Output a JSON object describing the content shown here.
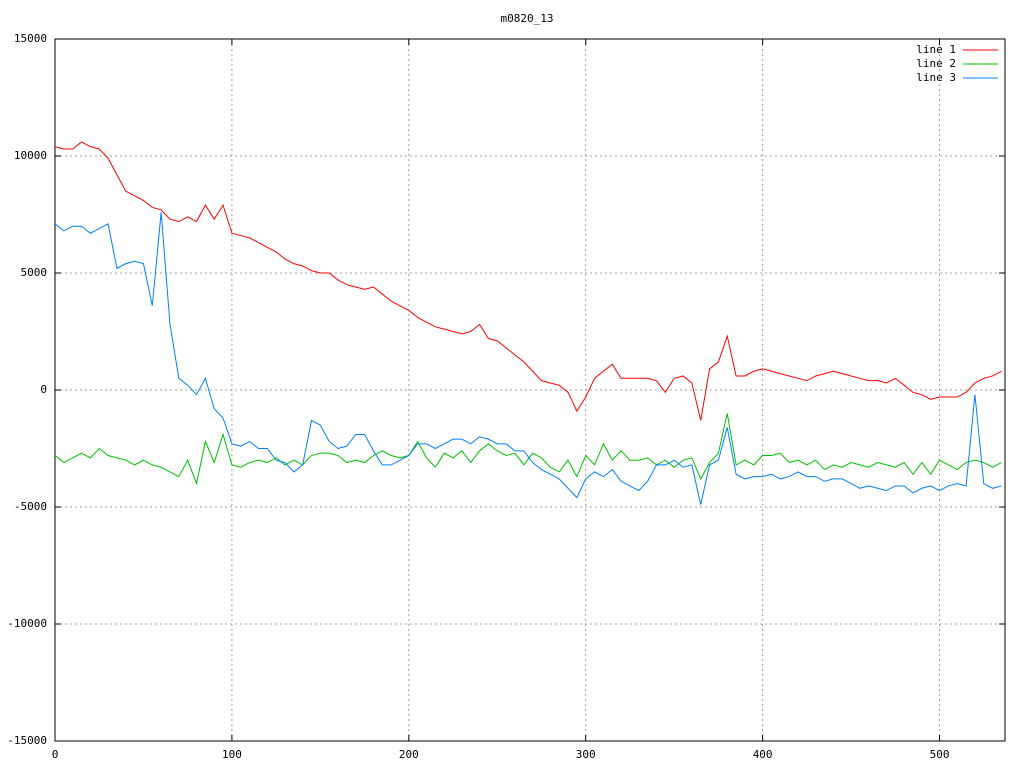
{
  "chart_data": {
    "type": "line",
    "title": "m0820_13",
    "x": [
      0,
      5,
      10,
      15,
      20,
      25,
      30,
      35,
      40,
      45,
      50,
      55,
      60,
      65,
      70,
      75,
      80,
      85,
      90,
      95,
      100,
      105,
      110,
      115,
      120,
      125,
      130,
      135,
      140,
      145,
      150,
      155,
      160,
      165,
      170,
      175,
      180,
      185,
      190,
      195,
      200,
      205,
      210,
      215,
      220,
      225,
      230,
      235,
      240,
      245,
      250,
      255,
      260,
      265,
      270,
      275,
      280,
      285,
      290,
      295,
      300,
      305,
      310,
      315,
      320,
      325,
      330,
      335,
      340,
      345,
      350,
      355,
      360,
      365,
      370,
      375,
      380,
      385,
      390,
      395,
      400,
      405,
      410,
      415,
      420,
      425,
      430,
      435,
      440,
      445,
      450,
      455,
      460,
      465,
      470,
      475,
      480,
      485,
      490,
      495,
      500,
      505,
      510,
      515,
      520,
      525,
      530,
      535
    ],
    "series": [
      {
        "name": "line 1",
        "color": "#ff0000",
        "values": [
          10400,
          10300,
          10300,
          10600,
          10400,
          10300,
          9900,
          9200,
          8500,
          8300,
          8100,
          7800,
          7700,
          7300,
          7200,
          7400,
          7200,
          7900,
          7300,
          7900,
          6700,
          6600,
          6500,
          6300,
          6100,
          5900,
          5600,
          5400,
          5300,
          5100,
          5000,
          5000,
          4700,
          4500,
          4400,
          4300,
          4400,
          4100,
          3800,
          3600,
          3400,
          3100,
          2900,
          2700,
          2600,
          2500,
          2400,
          2500,
          2800,
          2200,
          2100,
          1800,
          1500,
          1200,
          800,
          400,
          300,
          200,
          -100,
          -900,
          -300,
          500,
          800,
          1100,
          500,
          500,
          500,
          500,
          400,
          -100,
          500,
          600,
          300,
          -1300,
          900,
          1200,
          2300,
          600,
          600,
          800,
          900,
          800,
          700,
          600,
          500,
          400,
          600,
          700,
          800,
          700,
          600,
          500,
          400,
          400,
          300,
          500,
          200,
          -100,
          -200,
          -400,
          -300,
          -300,
          -300,
          -100,
          300,
          500,
          600,
          800
        ]
      },
      {
        "name": "line 2",
        "color": "#00c000",
        "values": [
          -2800,
          -3100,
          -2900,
          -2700,
          -2900,
          -2500,
          -2800,
          -2900,
          -3000,
          -3200,
          -3000,
          -3200,
          -3300,
          -3500,
          -3700,
          -3000,
          -4000,
          -2200,
          -3100,
          -1900,
          -3200,
          -3300,
          -3100,
          -3000,
          -3100,
          -2900,
          -3200,
          -3000,
          -3200,
          -2800,
          -2700,
          -2700,
          -2800,
          -3100,
          -3000,
          -3100,
          -2800,
          -2600,
          -2800,
          -2900,
          -2800,
          -2200,
          -2900,
          -3300,
          -2700,
          -2900,
          -2600,
          -3100,
          -2600,
          -2300,
          -2600,
          -2800,
          -2700,
          -3200,
          -2700,
          -2900,
          -3300,
          -3500,
          -3000,
          -3700,
          -2800,
          -3200,
          -2300,
          -3000,
          -2600,
          -3000,
          -3000,
          -2900,
          -3200,
          -3000,
          -3300,
          -3000,
          -2900,
          -3800,
          -3100,
          -2700,
          -1000,
          -3200,
          -3000,
          -3200,
          -2800,
          -2800,
          -2700,
          -3100,
          -3000,
          -3200,
          -3000,
          -3400,
          -3200,
          -3300,
          -3100,
          -3200,
          -3300,
          -3100,
          -3200,
          -3300,
          -3100,
          -3600,
          -3100,
          -3600,
          -3000,
          -3200,
          -3400,
          -3100,
          -3000,
          -3100,
          -3300,
          -3100
        ]
      },
      {
        "name": "line 3",
        "color": "#0080ff",
        "values": [
          7100,
          6800,
          7000,
          7000,
          6700,
          6900,
          7100,
          5200,
          5400,
          5500,
          5400,
          3600,
          7600,
          2800,
          500,
          200,
          -200,
          500,
          -800,
          -1200,
          -2300,
          -2400,
          -2200,
          -2500,
          -2500,
          -3000,
          -3100,
          -3500,
          -3200,
          -1300,
          -1500,
          -2200,
          -2500,
          -2400,
          -1900,
          -1900,
          -2600,
          -3200,
          -3200,
          -3000,
          -2800,
          -2300,
          -2300,
          -2500,
          -2300,
          -2100,
          -2100,
          -2300,
          -2000,
          -2100,
          -2300,
          -2300,
          -2600,
          -2600,
          -3100,
          -3400,
          -3600,
          -3800,
          -4200,
          -4600,
          -3800,
          -3500,
          -3700,
          -3400,
          -3900,
          -4100,
          -4300,
          -3900,
          -3200,
          -3200,
          -3000,
          -3300,
          -3200,
          -4900,
          -3200,
          -3000,
          -1600,
          -3600,
          -3800,
          -3700,
          -3700,
          -3600,
          -3800,
          -3700,
          -3500,
          -3700,
          -3700,
          -3900,
          -3800,
          -3800,
          -4000,
          -4200,
          -4100,
          -4200,
          -4300,
          -4100,
          -4100,
          -4400,
          -4200,
          -4100,
          -4300,
          -4100,
          -4000,
          -4100,
          -200,
          -4000,
          -4200,
          -4100
        ]
      }
    ],
    "xlim": [
      0,
      537
    ],
    "ylim": [
      -15000,
      15000
    ],
    "xticks": [
      0,
      100,
      200,
      300,
      400,
      500
    ],
    "yticks": [
      -15000,
      -10000,
      -5000,
      0,
      5000,
      10000,
      15000
    ],
    "grid": true,
    "legend": "top-right"
  }
}
